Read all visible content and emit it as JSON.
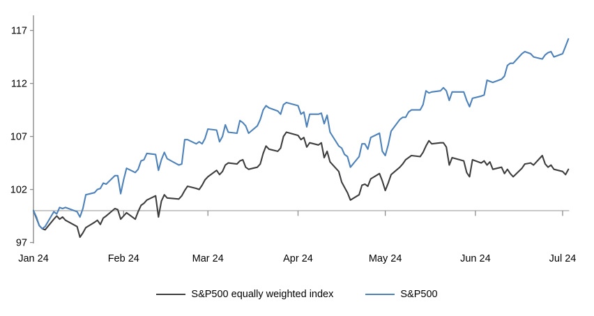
{
  "chart_data": {
    "type": "line",
    "title": "",
    "x_axis": {
      "tick_labels": [
        "Jan 24",
        "Feb 24",
        "Mar 24",
        "Apr 24",
        "May 24",
        "Jun 24",
        "Jul 24"
      ],
      "tick_day_of_year": [
        1,
        32,
        61,
        92,
        122,
        153,
        183
      ]
    },
    "y_axis": {
      "min": 97,
      "max": 117,
      "step": 5,
      "tick_labels": [
        "97",
        "102",
        "107",
        "112",
        "117"
      ],
      "tick_values": [
        97,
        102,
        107,
        112,
        117
      ]
    },
    "baseline_value": 100,
    "grid": "off",
    "legend_position": "bottom-center",
    "day_of_year": [
      1,
      2,
      3,
      4,
      5,
      8,
      9,
      10,
      11,
      12,
      16,
      17,
      18,
      19,
      22,
      23,
      24,
      25,
      26,
      29,
      30,
      31,
      32,
      33,
      36,
      37,
      38,
      39,
      40,
      43,
      44,
      45,
      46,
      47,
      51,
      52,
      53,
      54,
      57,
      58,
      59,
      60,
      61,
      64,
      65,
      66,
      67,
      68,
      71,
      72,
      73,
      74,
      75,
      78,
      79,
      80,
      81,
      82,
      85,
      86,
      87,
      88,
      92,
      93,
      94,
      95,
      96,
      99,
      100,
      101,
      102,
      103,
      106,
      107,
      108,
      109,
      110,
      113,
      114,
      115,
      116,
      117,
      120,
      121,
      122,
      123,
      124,
      127,
      128,
      129,
      130,
      131,
      134,
      135,
      136,
      137,
      138,
      141,
      142,
      143,
      144,
      145,
      149,
      150,
      151,
      152,
      155,
      156,
      157,
      158,
      159,
      162,
      163,
      164,
      165,
      166,
      169,
      170,
      172,
      173,
      176,
      177,
      178,
      179,
      180,
      183,
      184,
      185
    ],
    "series": [
      {
        "name": "S&P500 equally weighted index",
        "color": "#3d3d3d",
        "values": [
          100.0,
          99.3,
          98.6,
          98.3,
          98.2,
          99.2,
          99.5,
          99.2,
          99.4,
          99.1,
          98.5,
          97.5,
          97.9,
          98.4,
          98.9,
          99.1,
          98.7,
          99.3,
          99.5,
          100.2,
          100.1,
          99.2,
          99.5,
          99.8,
          99.2,
          99.9,
          100.5,
          100.7,
          101.0,
          101.4,
          99.4,
          100.9,
          101.5,
          101.2,
          101.1,
          101.4,
          101.9,
          102.3,
          102.1,
          102.0,
          102.4,
          102.9,
          103.2,
          103.8,
          103.4,
          103.7,
          104.3,
          104.5,
          104.4,
          104.7,
          104.8,
          104.1,
          103.9,
          104.1,
          104.4,
          105.4,
          106.1,
          105.8,
          105.6,
          105.9,
          107.0,
          107.4,
          107.1,
          106.7,
          106.9,
          106.0,
          106.4,
          106.2,
          106.4,
          105.0,
          105.6,
          104.6,
          103.7,
          102.7,
          102.2,
          101.7,
          101.0,
          101.5,
          102.4,
          102.5,
          102.3,
          103.0,
          103.5,
          102.8,
          101.9,
          102.6,
          103.4,
          104.1,
          104.4,
          104.8,
          105.0,
          105.2,
          105.1,
          105.5,
          106.1,
          106.6,
          106.3,
          106.4,
          106.4,
          106.0,
          104.3,
          105.0,
          104.7,
          103.6,
          103.2,
          104.8,
          104.5,
          104.7,
          104.3,
          104.6,
          103.9,
          104.1,
          103.5,
          103.9,
          103.5,
          103.2,
          104.0,
          104.4,
          104.5,
          104.3,
          105.2,
          104.4,
          104.1,
          104.3,
          103.9,
          103.7,
          103.4,
          103.9
        ]
      },
      {
        "name": "S&P500",
        "color": "#4d81b9",
        "values": [
          100.0,
          99.4,
          98.6,
          98.3,
          98.5,
          99.9,
          99.7,
          100.3,
          100.2,
          100.3,
          99.9,
          99.4,
          100.2,
          101.5,
          101.7,
          102.0,
          102.1,
          102.6,
          102.5,
          103.3,
          103.3,
          101.6,
          102.9,
          104.0,
          103.6,
          103.9,
          104.7,
          104.8,
          105.4,
          105.3,
          103.8,
          104.8,
          105.5,
          104.9,
          104.3,
          104.4,
          106.7,
          106.7,
          106.3,
          106.5,
          106.3,
          106.8,
          107.7,
          107.6,
          106.5,
          107.0,
          108.1,
          107.4,
          107.3,
          108.5,
          108.3,
          108.0,
          107.3,
          108.0,
          108.6,
          109.5,
          109.9,
          109.7,
          109.4,
          109.1,
          110.0,
          110.2,
          109.9,
          109.1,
          109.3,
          107.9,
          109.1,
          109.1,
          109.2,
          108.2,
          109.0,
          107.4,
          106.1,
          105.9,
          105.3,
          105.1,
          104.1,
          105.1,
          106.3,
          106.3,
          105.8,
          106.9,
          107.3,
          105.6,
          105.2,
          106.2,
          107.5,
          108.6,
          108.8,
          108.8,
          109.3,
          109.5,
          109.5,
          110.0,
          111.3,
          111.1,
          111.2,
          111.3,
          111.6,
          111.3,
          110.4,
          111.2,
          111.2,
          110.4,
          109.8,
          110.6,
          110.8,
          110.9,
          112.3,
          112.2,
          112.1,
          112.4,
          112.7,
          113.7,
          113.9,
          113.9,
          114.8,
          115.0,
          114.8,
          114.5,
          114.3,
          114.7,
          114.9,
          115.0,
          114.5,
          114.8,
          115.5,
          116.2
        ]
      }
    ]
  },
  "colors": {
    "background": "#ffffff",
    "axis": "#8c8c8c",
    "baseline": "#a6a6a6",
    "tick_text": "#000000"
  }
}
